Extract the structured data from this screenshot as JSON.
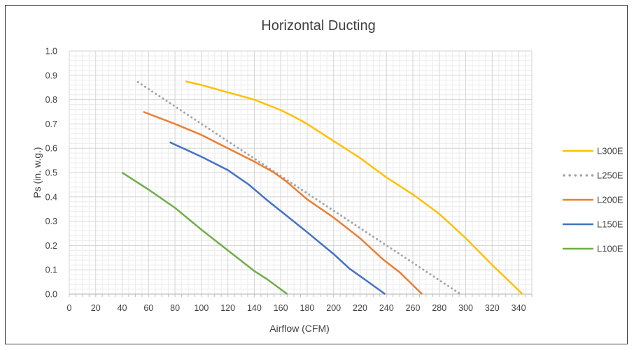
{
  "chart_data": {
    "type": "line",
    "title": "Horizontal Ducting",
    "xlabel": "Airflow (CFM)",
    "ylabel": "Ps (in. w.g.)",
    "xlim": [
      0,
      350
    ],
    "ylim": [
      0,
      1.0
    ],
    "x_ticks": [
      0,
      20,
      40,
      60,
      80,
      100,
      120,
      140,
      160,
      180,
      200,
      220,
      240,
      260,
      280,
      300,
      320,
      340
    ],
    "y_ticks": [
      0.0,
      0.1,
      0.2,
      0.3,
      0.4,
      0.5,
      0.6,
      0.7,
      0.8,
      0.9,
      1.0
    ],
    "x_tick_labels": [
      "0",
      "20",
      "40",
      "60",
      "80",
      "100",
      "120",
      "140",
      "160",
      "180",
      "200",
      "220",
      "240",
      "260",
      "280",
      "300",
      "320",
      "340"
    ],
    "y_tick_labels": [
      "0.0",
      "0.1",
      "0.2",
      "0.3",
      "0.4",
      "0.5",
      "0.6",
      "0.7",
      "0.8",
      "0.9",
      "1.0"
    ],
    "grid": true,
    "legend": "right",
    "series": [
      {
        "name": "L300E",
        "color": "#FFC000",
        "style": "solid",
        "points": [
          [
            88,
            0.875
          ],
          [
            100,
            0.86
          ],
          [
            120,
            0.83
          ],
          [
            140,
            0.8
          ],
          [
            160,
            0.757
          ],
          [
            170,
            0.73
          ],
          [
            180,
            0.7
          ],
          [
            200,
            0.63
          ],
          [
            220,
            0.56
          ],
          [
            240,
            0.48
          ],
          [
            260,
            0.41
          ],
          [
            280,
            0.33
          ],
          [
            300,
            0.23
          ],
          [
            320,
            0.12
          ],
          [
            343,
            0.0
          ]
        ]
      },
      {
        "name": "L250E",
        "color": "#A5A5A5",
        "style": "dotted",
        "points": [
          [
            52,
            0.872
          ],
          [
            296,
            0.0
          ]
        ]
      },
      {
        "name": "L200E",
        "color": "#ED7D31",
        "style": "solid",
        "points": [
          [
            56,
            0.75
          ],
          [
            80,
            0.7
          ],
          [
            100,
            0.655
          ],
          [
            120,
            0.6
          ],
          [
            140,
            0.545
          ],
          [
            155,
            0.5
          ],
          [
            165,
            0.46
          ],
          [
            180,
            0.39
          ],
          [
            200,
            0.315
          ],
          [
            220,
            0.23
          ],
          [
            238,
            0.14
          ],
          [
            250,
            0.09
          ],
          [
            267,
            0.0
          ]
        ]
      },
      {
        "name": "L150E",
        "color": "#4472C4",
        "style": "solid",
        "points": [
          [
            76,
            0.625
          ],
          [
            100,
            0.565
          ],
          [
            120,
            0.51
          ],
          [
            136,
            0.45
          ],
          [
            150,
            0.385
          ],
          [
            165,
            0.32
          ],
          [
            180,
            0.255
          ],
          [
            200,
            0.165
          ],
          [
            212,
            0.105
          ],
          [
            225,
            0.055
          ],
          [
            239,
            0.0
          ]
        ]
      },
      {
        "name": "L100E",
        "color": "#70AD47",
        "style": "solid",
        "points": [
          [
            40,
            0.5
          ],
          [
            60,
            0.43
          ],
          [
            80,
            0.355
          ],
          [
            100,
            0.265
          ],
          [
            120,
            0.18
          ],
          [
            140,
            0.095
          ],
          [
            150,
            0.06
          ],
          [
            165,
            0.0
          ]
        ]
      }
    ]
  }
}
